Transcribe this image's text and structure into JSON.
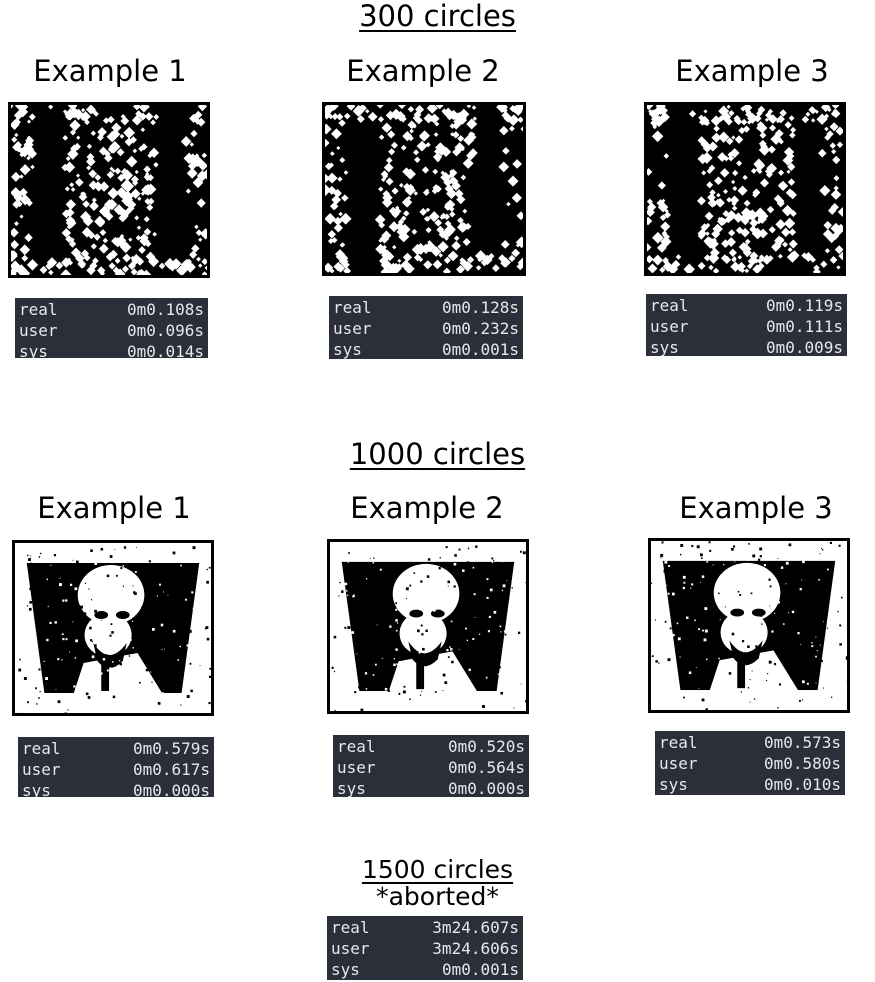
{
  "sections": [
    {
      "title": "300 circles",
      "examples": [
        {
          "label": "Example 1",
          "timing": [
            {
              "k": "real",
              "v": "0m0.108s"
            },
            {
              "k": "user",
              "v": "0m0.096s"
            },
            {
              "k": "sys",
              "v": "0m0.014s"
            }
          ]
        },
        {
          "label": "Example 2",
          "timing": [
            {
              "k": "real",
              "v": "0m0.128s"
            },
            {
              "k": "user",
              "v": "0m0.232s"
            },
            {
              "k": "sys",
              "v": "0m0.001s"
            }
          ]
        },
        {
          "label": "Example 3",
          "timing": [
            {
              "k": "real",
              "v": "0m0.119s"
            },
            {
              "k": "user",
              "v": "0m0.111s"
            },
            {
              "k": "sys",
              "v": "0m0.009s"
            }
          ]
        }
      ]
    },
    {
      "title": "1000 circles",
      "examples": [
        {
          "label": "Example 1",
          "timing": [
            {
              "k": "real",
              "v": "0m0.579s"
            },
            {
              "k": "user",
              "v": "0m0.617s"
            },
            {
              "k": "sys",
              "v": "0m0.000s"
            }
          ]
        },
        {
          "label": "Example 2",
          "timing": [
            {
              "k": "real",
              "v": "0m0.520s"
            },
            {
              "k": "user",
              "v": "0m0.564s"
            },
            {
              "k": "sys",
              "v": "0m0.000s"
            }
          ]
        },
        {
          "label": "Example 3",
          "timing": [
            {
              "k": "real",
              "v": "0m0.573s"
            },
            {
              "k": "user",
              "v": "0m0.580s"
            },
            {
              "k": "sys",
              "v": "0m0.010s"
            }
          ]
        }
      ]
    },
    {
      "title": "1500 circles",
      "subtitle": "*aborted*",
      "timing": [
        {
          "k": "real",
          "v": "3m24.607s"
        },
        {
          "k": "user",
          "v": "3m24.606s"
        },
        {
          "k": "sys",
          "v": "0m0.001s"
        }
      ]
    }
  ],
  "colors": {
    "terminal_bg": "#2a2f3a",
    "terminal_fg": "#e6e8ea"
  }
}
